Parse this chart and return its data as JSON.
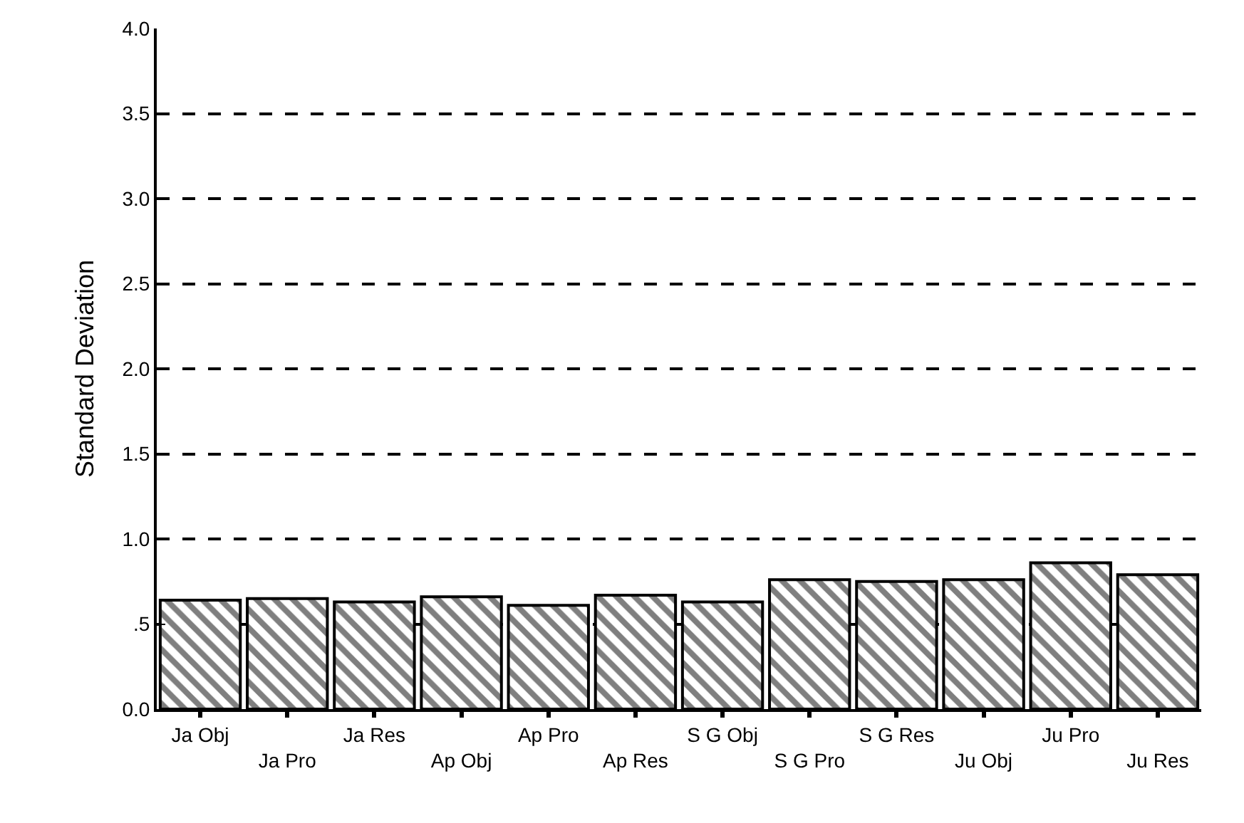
{
  "chart_data": {
    "type": "bar",
    "ylabel": "Standard Deviation",
    "categories": [
      "Ja Obj",
      "Ja Pro",
      "Ja Res",
      "Ap Obj",
      "Ap Pro",
      "Ap Res",
      "S G Obj",
      "S G Pro",
      "S G Res",
      "Ju Obj",
      "Ju Pro",
      "Ju Res"
    ],
    "values": [
      0.64,
      0.65,
      0.63,
      0.66,
      0.61,
      0.67,
      0.63,
      0.76,
      0.75,
      0.76,
      0.86,
      0.79
    ],
    "color": "#000000",
    "ylim": [
      0,
      4
    ],
    "yticks": [
      {
        "value": 0,
        "label": "0.0"
      },
      {
        "value": 0.5,
        "label": ".5"
      },
      {
        "value": 1,
        "label": "1.0"
      },
      {
        "value": 1.5,
        "label": "1.5"
      },
      {
        "value": 2,
        "label": "2.0"
      },
      {
        "value": 2.5,
        "label": "2.5"
      },
      {
        "value": 3,
        "label": "3.0"
      },
      {
        "value": 3.5,
        "label": "3.5"
      },
      {
        "value": 4,
        "label": "4.0"
      }
    ],
    "grid": "y",
    "line_style": "dashed"
  }
}
